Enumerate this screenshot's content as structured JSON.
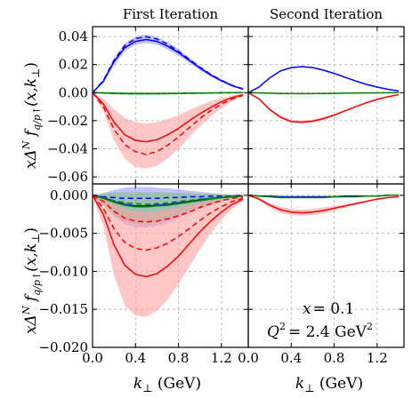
{
  "chart_data": [
    {
      "id": "top-left",
      "type": "line",
      "title": "First Iteration",
      "xlabel": "",
      "ylabel": "xΔN fq/p↑(x,k⊥)",
      "xlim": [
        0.0,
        1.45
      ],
      "ylim": [
        -0.065,
        0.047
      ],
      "yticks": [
        "0.04",
        "0.02",
        "0.00",
        "−0.02",
        "−0.04",
        "−0.06"
      ],
      "ytick_values": [
        0.04,
        0.02,
        0.0,
        -0.02,
        -0.04,
        -0.06
      ],
      "grid": true,
      "x": [
        0.0,
        0.1,
        0.2,
        0.3,
        0.4,
        0.5,
        0.6,
        0.7,
        0.8,
        0.9,
        1.0,
        1.1,
        1.2,
        1.3,
        1.4
      ],
      "series": [
        {
          "color": "#0000ff",
          "values": [
            0.0,
            0.008,
            0.022,
            0.032,
            0.0365,
            0.0378,
            0.0365,
            0.033,
            0.0285,
            0.023,
            0.0175,
            0.0125,
            0.0085,
            0.005,
            0.0025
          ],
          "dashed": [
            0.0,
            0.0085,
            0.023,
            0.0335,
            0.0385,
            0.0398,
            0.0382,
            0.0345,
            0.0295,
            0.0238,
            0.018,
            0.013,
            0.0088,
            0.0052,
            0.0027
          ],
          "band_lower": [
            0.0,
            0.0065,
            0.0195,
            0.0295,
            0.034,
            0.0352,
            0.034,
            0.0307,
            0.0263,
            0.0212,
            0.016,
            0.0113,
            0.0075,
            0.0043,
            0.002
          ],
          "band_upper": [
            0.0,
            0.0095,
            0.0245,
            0.035,
            0.0402,
            0.0415,
            0.0398,
            0.036,
            0.031,
            0.025,
            0.019,
            0.0137,
            0.0095,
            0.0057,
            0.003
          ]
        },
        {
          "color": "#008000",
          "values": [
            0.0,
            -0.0002,
            -0.0004,
            -0.0006,
            -0.0007,
            -0.0007,
            -0.0007,
            -0.0006,
            -0.0005,
            -0.0004,
            -0.0003,
            -0.0002,
            -0.0001,
            -0.0001,
            0.0
          ],
          "dashed": [
            0.0,
            -0.0003,
            -0.0005,
            -0.0007,
            -0.0008,
            -0.0008,
            -0.0008,
            -0.0007,
            -0.0006,
            -0.0005,
            -0.0004,
            -0.0003,
            -0.0002,
            -0.0001,
            0.0
          ],
          "band_lower": [
            0.0,
            -0.0008,
            -0.0012,
            -0.0014,
            -0.0015,
            -0.0015,
            -0.0014,
            -0.0013,
            -0.0011,
            -0.0009,
            -0.0007,
            -0.0005,
            -0.0004,
            -0.0003,
            -0.0002
          ],
          "band_upper": [
            0.0,
            0.0004,
            0.0004,
            0.0002,
            0.0001,
            0.0001,
            0.0,
            0.0001,
            0.0001,
            0.0001,
            0.0001,
            0.0001,
            0.0002,
            0.0001,
            0.0002
          ]
        },
        {
          "color": "#ff0000",
          "values": [
            0.0,
            -0.008,
            -0.021,
            -0.03,
            -0.034,
            -0.035,
            -0.0335,
            -0.03,
            -0.0255,
            -0.02,
            -0.015,
            -0.0105,
            -0.0065,
            -0.0035,
            -0.0015
          ],
          "dashed": [
            0.0,
            -0.01,
            -0.026,
            -0.037,
            -0.042,
            -0.044,
            -0.042,
            -0.0375,
            -0.0315,
            -0.025,
            -0.0185,
            -0.0128,
            -0.0082,
            -0.0045,
            -0.002
          ],
          "band_lower": [
            0.0,
            -0.013,
            -0.034,
            -0.047,
            -0.053,
            -0.054,
            -0.052,
            -0.047,
            -0.04,
            -0.032,
            -0.024,
            -0.017,
            -0.011,
            -0.006,
            -0.0025
          ],
          "band_upper": [
            0.0,
            -0.004,
            -0.012,
            -0.018,
            -0.021,
            -0.022,
            -0.021,
            -0.019,
            -0.016,
            -0.0125,
            -0.009,
            -0.0062,
            -0.0038,
            -0.002,
            -0.0008
          ]
        }
      ]
    },
    {
      "id": "top-right",
      "type": "line",
      "title": "Second Iteration",
      "xlabel": "",
      "xlim": [
        0.0,
        1.45
      ],
      "ylim": [
        -0.065,
        0.047
      ],
      "grid": true,
      "x": [
        0.0,
        0.1,
        0.2,
        0.3,
        0.4,
        0.5,
        0.6,
        0.7,
        0.8,
        0.9,
        1.0,
        1.1,
        1.2,
        1.3,
        1.4
      ],
      "series": [
        {
          "color": "#0000ff",
          "values": [
            0.0,
            0.004,
            0.0105,
            0.0155,
            0.0178,
            0.0185,
            0.0178,
            0.016,
            0.0137,
            0.011,
            0.0083,
            0.0059,
            0.004,
            0.0024,
            0.0012
          ],
          "band_lower": [
            0.0,
            0.0038,
            0.0101,
            0.015,
            0.0173,
            0.018,
            0.0173,
            0.0155,
            0.0133,
            0.0107,
            0.008,
            0.0057,
            0.0038,
            0.0023,
            0.0011
          ],
          "band_upper": [
            0.0,
            0.0042,
            0.0109,
            0.016,
            0.0183,
            0.019,
            0.0183,
            0.0165,
            0.0141,
            0.0113,
            0.0086,
            0.0061,
            0.0042,
            0.0025,
            0.0013
          ]
        },
        {
          "color": "#008000",
          "values": [
            0.0,
            -0.0002,
            -0.0004,
            -0.0006,
            -0.0007,
            -0.0007,
            -0.0007,
            -0.0006,
            -0.0005,
            -0.0004,
            -0.0003,
            -0.0002,
            -0.0002,
            -0.0001,
            0.0
          ],
          "band_lower": [
            0.0,
            -0.0004,
            -0.0006,
            -0.0008,
            -0.0009,
            -0.0009,
            -0.0009,
            -0.0008,
            -0.0007,
            -0.0006,
            -0.0005,
            -0.0004,
            -0.0003,
            -0.0002,
            -0.0001
          ],
          "band_upper": [
            0.0,
            0.0,
            -0.0002,
            -0.0004,
            -0.0005,
            -0.0005,
            -0.0005,
            -0.0004,
            -0.0003,
            -0.0002,
            -0.0001,
            -0.0001,
            -0.0001,
            0.0,
            0.0
          ]
        },
        {
          "color": "#ff0000",
          "values": [
            0.0,
            -0.0045,
            -0.012,
            -0.0175,
            -0.0205,
            -0.021,
            -0.0203,
            -0.0185,
            -0.016,
            -0.013,
            -0.01,
            -0.0072,
            -0.0048,
            -0.0029,
            -0.0015
          ],
          "band_lower": [
            0.0,
            -0.005,
            -0.0128,
            -0.0185,
            -0.0215,
            -0.0222,
            -0.0214,
            -0.0195,
            -0.0168,
            -0.0137,
            -0.0106,
            -0.0077,
            -0.0052,
            -0.0032,
            -0.0017
          ],
          "band_upper": [
            0.0,
            -0.004,
            -0.0112,
            -0.0165,
            -0.0195,
            -0.0198,
            -0.0192,
            -0.0175,
            -0.0152,
            -0.0123,
            -0.0094,
            -0.0067,
            -0.0044,
            -0.0026,
            -0.0013
          ]
        }
      ]
    },
    {
      "id": "bottom-left",
      "type": "line",
      "title": "",
      "xlabel": "k⊥ (GeV)",
      "ylabel": "xΔN fq/p↑(x,k⊥)",
      "xlim": [
        0.0,
        1.45
      ],
      "ylim": [
        -0.02,
        0.0015
      ],
      "yticks": [
        "0.000",
        "−0.005",
        "−0.010",
        "−0.015",
        "−0.020"
      ],
      "ytick_values": [
        0.0,
        -0.005,
        -0.01,
        -0.015,
        -0.02
      ],
      "xticks": [
        "0.0",
        "0.4",
        "0.8",
        "1.2"
      ],
      "xtick_values": [
        0.0,
        0.4,
        0.8,
        1.2
      ],
      "grid": true,
      "x": [
        0.0,
        0.1,
        0.2,
        0.3,
        0.4,
        0.5,
        0.6,
        0.7,
        0.8,
        0.9,
        1.0,
        1.1,
        1.2,
        1.3,
        1.4
      ],
      "series": [
        {
          "color": "#0000ff",
          "values": [
            0.0,
            -0.0003,
            -0.0008,
            -0.0012,
            -0.0014,
            -0.0014,
            -0.0013,
            -0.0012,
            -0.001,
            -0.0008,
            -0.0006,
            -0.0004,
            -0.0003,
            -0.0002,
            -0.0001
          ],
          "dashed": [
            0.0,
            -0.0002,
            -0.0003,
            -0.0004,
            -0.0004,
            -0.0004,
            -0.0004,
            -0.0003,
            -0.0003,
            -0.0002,
            -0.0002,
            -0.0001,
            -0.0001,
            -0.0001,
            0.0
          ],
          "band_lower": [
            0.0,
            -0.0012,
            -0.0028,
            -0.0038,
            -0.0042,
            -0.0042,
            -0.004,
            -0.0036,
            -0.003,
            -0.0024,
            -0.0018,
            -0.0013,
            -0.0008,
            -0.0005,
            -0.0003
          ],
          "band_upper": [
            0.0,
            0.0003,
            0.0007,
            0.001,
            0.0011,
            0.0011,
            0.001,
            0.0009,
            0.0008,
            0.0006,
            0.0005,
            0.0003,
            0.0002,
            0.0001,
            0.0001
          ]
        },
        {
          "color": "#008000",
          "values": [
            0.0,
            -0.0004,
            -0.0009,
            -0.0013,
            -0.0015,
            -0.0015,
            -0.0014,
            -0.0013,
            -0.0011,
            -0.0009,
            -0.0007,
            -0.0005,
            -0.0003,
            -0.0002,
            -0.0001
          ],
          "dashed": [
            0.0,
            -0.0003,
            -0.0007,
            -0.001,
            -0.0011,
            -0.0012,
            -0.0011,
            -0.001,
            -0.0008,
            -0.0007,
            -0.0005,
            -0.0004,
            -0.0002,
            -0.0001,
            -0.0001
          ],
          "band_lower": [
            0.0,
            -0.0012,
            -0.0026,
            -0.0034,
            -0.0037,
            -0.0037,
            -0.0035,
            -0.0031,
            -0.0026,
            -0.0021,
            -0.0016,
            -0.0011,
            -0.0007,
            -0.0004,
            -0.0002
          ],
          "band_upper": [
            0.0,
            0.0002,
            0.0004,
            0.0004,
            0.0004,
            0.0004,
            0.0004,
            0.0004,
            0.0003,
            0.0003,
            0.0002,
            0.0002,
            0.0001,
            0.0001,
            0.0
          ]
        },
        {
          "color": "#ff0000",
          "values": [
            0.0,
            -0.0025,
            -0.0065,
            -0.0092,
            -0.0104,
            -0.0107,
            -0.0103,
            -0.0093,
            -0.008,
            -0.0064,
            -0.0048,
            -0.0034,
            -0.0022,
            -0.0012,
            -0.0005
          ],
          "dashed": [
            0.0,
            -0.0017,
            -0.0044,
            -0.0062,
            -0.007,
            -0.0072,
            -0.0069,
            -0.0063,
            -0.0054,
            -0.0044,
            -0.0033,
            -0.0023,
            -0.0015,
            -0.0008,
            -0.0004
          ],
          "dashed2": [
            0.0,
            -0.0008,
            -0.0021,
            -0.003,
            -0.0034,
            -0.0035,
            -0.0034,
            -0.0031,
            -0.0027,
            -0.0022,
            -0.0016,
            -0.0011,
            -0.0007,
            -0.0004,
            -0.0002
          ],
          "band_lower": [
            0.0,
            -0.004,
            -0.0105,
            -0.0145,
            -0.0158,
            -0.016,
            -0.0152,
            -0.0137,
            -0.0117,
            -0.0094,
            -0.0071,
            -0.005,
            -0.0032,
            -0.0018,
            -0.0008
          ],
          "band_upper": [
            0.0,
            -0.0004,
            -0.0012,
            -0.0018,
            -0.0021,
            -0.0022,
            -0.0021,
            -0.0019,
            -0.0016,
            -0.0013,
            -0.001,
            -0.0007,
            -0.0005,
            -0.0003,
            -0.0001
          ]
        }
      ]
    },
    {
      "id": "bottom-right",
      "type": "line",
      "title": "",
      "xlabel": "k⊥ (GeV)",
      "xlim": [
        0.0,
        1.45
      ],
      "ylim": [
        -0.02,
        0.0015
      ],
      "xticks": [
        "0.0",
        "0.4",
        "0.8",
        "1.2"
      ],
      "xtick_values": [
        0.0,
        0.4,
        0.8,
        1.2
      ],
      "grid": true,
      "x": [
        0.0,
        0.1,
        0.2,
        0.3,
        0.4,
        0.5,
        0.6,
        0.7,
        0.8,
        0.9,
        1.0,
        1.1,
        1.2,
        1.3,
        1.4
      ],
      "series": [
        {
          "color": "#0000ff",
          "values": [
            0.0,
            -0.0001,
            -0.0001,
            -0.0002,
            -0.0002,
            -0.0002,
            -0.0002,
            -0.0002,
            -0.0002,
            -0.0001,
            -0.0001,
            -0.0001,
            -0.0001,
            0.0,
            0.0
          ],
          "band_lower": [
            0.0,
            -0.0002,
            -0.0002,
            -0.0003,
            -0.0003,
            -0.0003,
            -0.0003,
            -0.0003,
            -0.0003,
            -0.0002,
            -0.0002,
            -0.0002,
            -0.0001,
            -0.0001,
            0.0
          ],
          "band_upper": [
            0.0,
            0.0,
            0.0,
            -0.0001,
            -0.0001,
            -0.0001,
            -0.0001,
            -0.0001,
            -0.0001,
            0.0,
            0.0,
            0.0,
            0.0,
            0.0,
            0.0
          ]
        },
        {
          "color": "#008000",
          "values": [
            0.0,
            -0.0001,
            -0.0002,
            -0.0003,
            -0.0003,
            -0.0003,
            -0.0003,
            -0.0003,
            -0.0002,
            -0.0002,
            -0.0002,
            -0.0001,
            -0.0001,
            0.0,
            0.0
          ],
          "band_lower": [
            0.0,
            -0.0002,
            -0.0003,
            -0.0004,
            -0.0004,
            -0.0004,
            -0.0004,
            -0.0004,
            -0.0003,
            -0.0003,
            -0.0002,
            -0.0002,
            -0.0001,
            -0.0001,
            0.0
          ],
          "band_upper": [
            0.0,
            0.0,
            -0.0001,
            -0.0002,
            -0.0002,
            -0.0002,
            -0.0002,
            -0.0002,
            -0.0001,
            -0.0001,
            -0.0001,
            -0.0001,
            0.0,
            0.0,
            0.0
          ]
        },
        {
          "color": "#ff0000",
          "values": [
            0.0,
            -0.0005,
            -0.0013,
            -0.0019,
            -0.0022,
            -0.0023,
            -0.0022,
            -0.002,
            -0.0017,
            -0.0014,
            -0.0011,
            -0.0008,
            -0.0005,
            -0.0003,
            -0.0002
          ],
          "band_lower": [
            0.0,
            -0.0007,
            -0.0016,
            -0.0023,
            -0.0026,
            -0.0027,
            -0.0026,
            -0.0024,
            -0.002,
            -0.0016,
            -0.0013,
            -0.0009,
            -0.0006,
            -0.0004,
            -0.0002
          ],
          "band_upper": [
            0.0,
            -0.0003,
            -0.001,
            -0.0015,
            -0.0018,
            -0.0019,
            -0.0018,
            -0.0016,
            -0.0014,
            -0.0012,
            -0.0009,
            -0.0007,
            -0.0004,
            -0.0002,
            -0.0001
          ]
        }
      ]
    }
  ],
  "annotation": {
    "x_label": "x",
    "x_value": "= 0.1",
    "q_label": "Q",
    "q_exp": "2",
    "q_value": "= 2.4 GeV",
    "q_unit_exp": "2"
  },
  "ylabel_parts": {
    "pre": "xΔ",
    "sup": "N",
    "f": "f",
    "sub": "q/p↑",
    "post": "(x,k",
    "perp": "⊥",
    "close": ")"
  },
  "xlabel_parts": {
    "k": "k",
    "perp": "⊥",
    "unit": " (GeV)"
  },
  "colors": {
    "blue": "#0000ff",
    "green": "#008000",
    "red": "#ff0000",
    "blue_band": "#9b9bff",
    "green_band": "#7fbf7f",
    "red_band": "#ffa0a0",
    "grid": "#bdbdbd"
  }
}
